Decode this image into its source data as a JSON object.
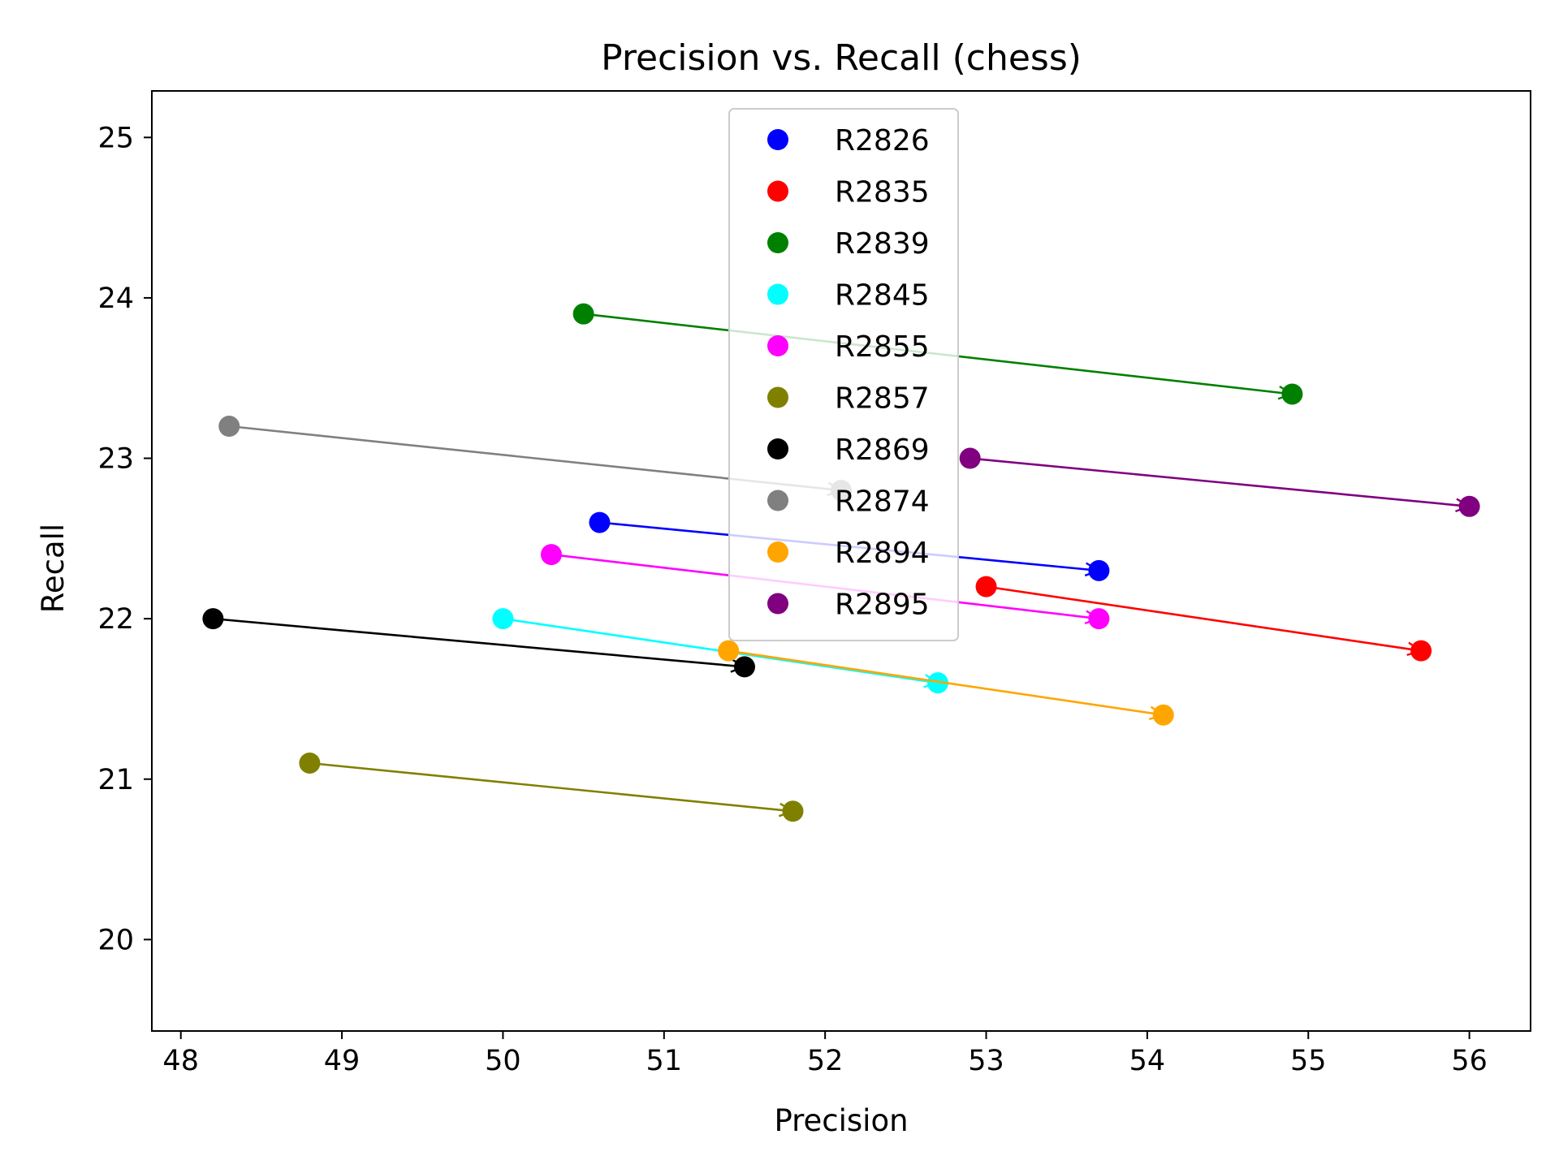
{
  "chart_data": {
    "type": "scatter",
    "title": "Precision vs. Recall (chess)",
    "xlabel": "Precision",
    "ylabel": "Recall",
    "xlim": [
      47.82,
      56.38
    ],
    "ylim": [
      19.43,
      25.29
    ],
    "xticks": [
      48,
      49,
      50,
      51,
      52,
      53,
      54,
      55,
      56
    ],
    "yticks": [
      20,
      21,
      22,
      23,
      24,
      25
    ],
    "grid": false,
    "legend_position": "upper center",
    "series": [
      {
        "name": "R2826",
        "color": "#0000ff",
        "start": [
          50.6,
          22.6
        ],
        "end": [
          53.7,
          22.3
        ]
      },
      {
        "name": "R2835",
        "color": "#ff0000",
        "start": [
          53.0,
          22.2
        ],
        "end": [
          55.7,
          21.8
        ]
      },
      {
        "name": "R2839",
        "color": "#008000",
        "start": [
          50.5,
          23.9
        ],
        "end": [
          54.9,
          23.4
        ]
      },
      {
        "name": "R2845",
        "color": "#00ffff",
        "start": [
          50.0,
          22.0
        ],
        "end": [
          52.7,
          21.6
        ]
      },
      {
        "name": "R2855",
        "color": "#ff00ff",
        "start": [
          50.3,
          22.4
        ],
        "end": [
          53.7,
          22.0
        ]
      },
      {
        "name": "R2857",
        "color": "#808000",
        "start": [
          48.8,
          21.1
        ],
        "end": [
          51.8,
          20.8
        ]
      },
      {
        "name": "R2869",
        "color": "#000000",
        "start": [
          48.2,
          22.0
        ],
        "end": [
          51.5,
          21.7
        ]
      },
      {
        "name": "R2874",
        "color": "#808080",
        "start": [
          48.3,
          23.2
        ],
        "end": [
          52.1,
          22.8
        ]
      },
      {
        "name": "R2894",
        "color": "#ffa500",
        "start": [
          51.4,
          21.8
        ],
        "end": [
          54.1,
          21.4
        ]
      },
      {
        "name": "R2895",
        "color": "#800080",
        "start": [
          52.9,
          23.0
        ],
        "end": [
          56.0,
          22.7
        ]
      }
    ]
  }
}
